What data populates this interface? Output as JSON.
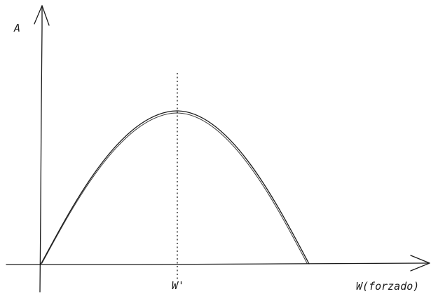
{
  "diagram": {
    "y_axis_label": "A",
    "x_axis_label": "W(forzado)",
    "peak_label": "W'",
    "stroke_color": "#1a1a1a",
    "background_color": "#ffffff"
  }
}
